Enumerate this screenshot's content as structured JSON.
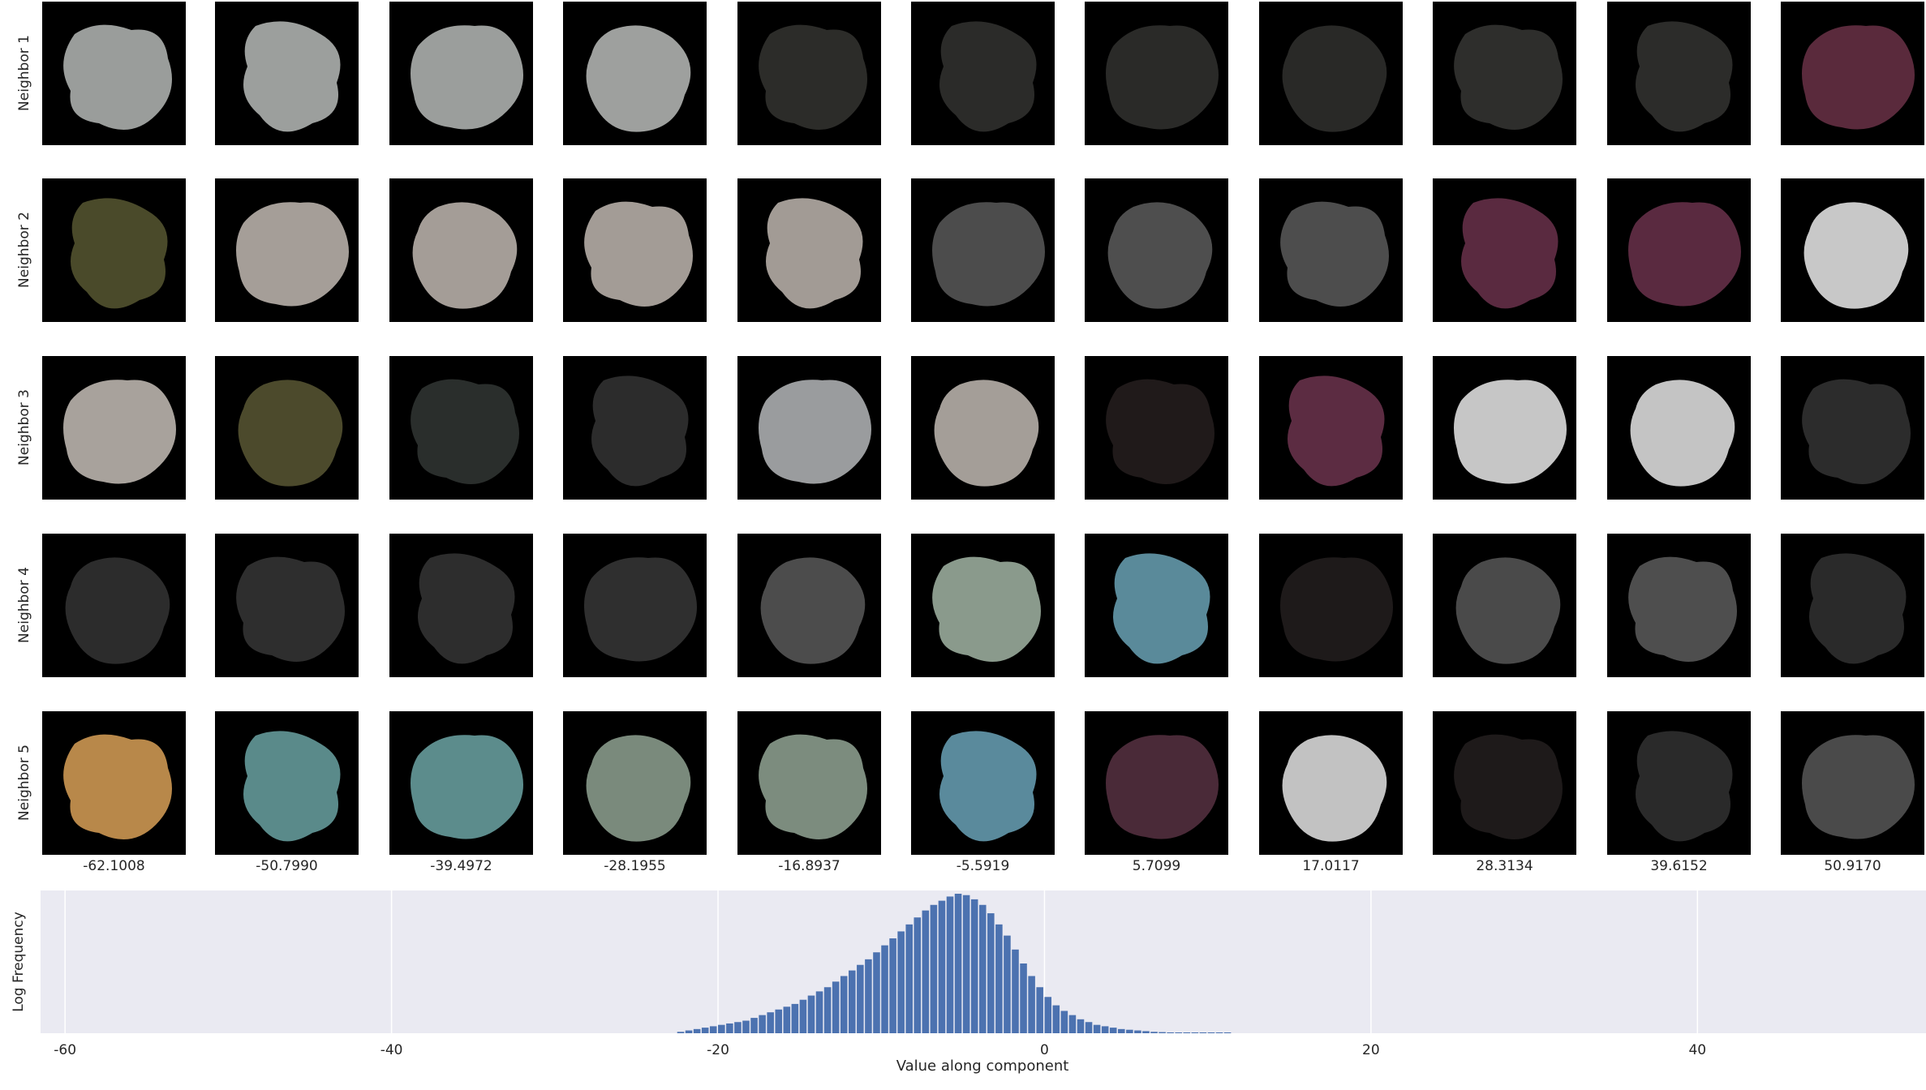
{
  "row_labels": [
    "Neighbor 1",
    "Neighbor 2",
    "Neighbor 3",
    "Neighbor 4",
    "Neighbor 5"
  ],
  "column_values": [
    "-62.1008",
    "-50.7990",
    "-39.4972",
    "-28.1955",
    "-16.8937",
    "-5.5919",
    "5.7099",
    "17.0117",
    "28.3134",
    "39.6152",
    "50.9170"
  ],
  "tile_colors": [
    [
      "#9a9d9b",
      "#9c9f9d",
      "#9b9e9c",
      "#9ea09e",
      "#2c2c29",
      "#2b2b29",
      "#2a2a28",
      "#292927",
      "#2e2e2c",
      "#2c2c2a",
      "#5a2a3c"
    ],
    [
      "#4a4a2a",
      "#a59e98",
      "#a49d97",
      "#a39c96",
      "#a29b95",
      "#4c4c4c",
      "#4e4e4e",
      "#4d4d4d",
      "#5a2a40",
      "#5a2a40",
      "#c8c8c8"
    ],
    [
      "#a8a29c",
      "#4c4a2c",
      "#2a2e2c",
      "#2c2c2c",
      "#9a9c9e",
      "#a49e98",
      "#201a1a",
      "#5c2c42",
      "#c6c6c6",
      "#c4c4c4",
      "#2c2c2c"
    ],
    [
      "#2c2c2c",
      "#2e2e2e",
      "#2d2d2d",
      "#2f2f2f",
      "#4c4c4c",
      "#8a9a8c",
      "#5a8a9a",
      "#1e1a1a",
      "#4a4a4a",
      "#4e4e4e",
      "#2a2a2a"
    ],
    [
      "#b8884a",
      "#5a8a8a",
      "#5c8c8c",
      "#7a8a7c",
      "#7c8c7e",
      "#5a8a9c",
      "#4a2a38",
      "#c2c2c2",
      "#1e1a1a",
      "#2a2a2a",
      "#4a4a4a"
    ]
  ],
  "chart_data": {
    "type": "bar",
    "xlabel": "Value along component",
    "ylabel": "Log Frequency",
    "xlim": [
      -61.5,
      54
    ],
    "xticks": [
      -60,
      -40,
      -20,
      0,
      20,
      40
    ],
    "bin_width": 0.5,
    "bins_start": -22.5,
    "values": [
      0.01,
      0.02,
      0.03,
      0.04,
      0.05,
      0.06,
      0.07,
      0.08,
      0.09,
      0.11,
      0.13,
      0.15,
      0.17,
      0.19,
      0.21,
      0.24,
      0.27,
      0.3,
      0.33,
      0.37,
      0.41,
      0.45,
      0.49,
      0.53,
      0.58,
      0.63,
      0.68,
      0.73,
      0.78,
      0.83,
      0.88,
      0.92,
      0.95,
      0.98,
      1.0,
      0.99,
      0.96,
      0.92,
      0.86,
      0.78,
      0.7,
      0.6,
      0.5,
      0.41,
      0.33,
      0.26,
      0.2,
      0.16,
      0.13,
      0.1,
      0.08,
      0.06,
      0.05,
      0.04,
      0.03,
      0.025,
      0.02,
      0.015,
      0.01,
      0.008,
      0.006,
      0.005,
      0.004,
      0.003,
      0.002,
      0.001,
      0.001,
      0.001
    ],
    "bar_color": "#4c72b0",
    "background": "#eaeaf2",
    "grid": true
  }
}
